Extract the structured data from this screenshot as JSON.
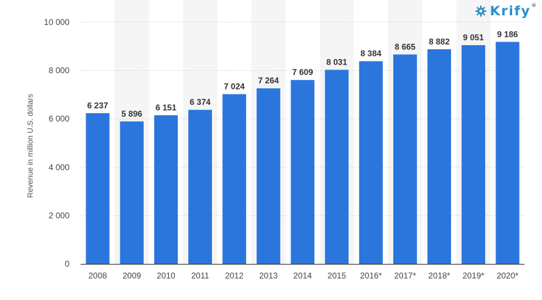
{
  "brand": {
    "name": "Krify",
    "mark": "®",
    "icon": "gear-icon",
    "color": "#2a8fc9"
  },
  "chart_data": {
    "type": "bar",
    "title": "",
    "xlabel": "",
    "ylabel": "Revenue in million U.S. dollars",
    "categories": [
      "2008",
      "2009",
      "2010",
      "2011",
      "2012",
      "2013",
      "2014",
      "2015",
      "2016*",
      "2017*",
      "2018*",
      "2019*",
      "2020*"
    ],
    "values": [
      6237,
      5896,
      6151,
      6374,
      7024,
      7264,
      7609,
      8031,
      8384,
      8665,
      8882,
      9051,
      9186
    ],
    "value_labels": [
      "6 237",
      "5 896",
      "6 151",
      "6 374",
      "7 024",
      "7 264",
      "7 609",
      "8 031",
      "8 384",
      "8 665",
      "8 882",
      "9 051",
      "9 186"
    ],
    "ylim": [
      0,
      10000
    ],
    "yticks": [
      0,
      2000,
      4000,
      6000,
      8000,
      10000
    ],
    "ytick_labels": [
      "0",
      "2 000",
      "4 000",
      "6 000",
      "8 000",
      "10 000"
    ],
    "grid": true,
    "legend": "none",
    "bar_color": "#2a76dd",
    "band_color": "#f5f5f5"
  }
}
